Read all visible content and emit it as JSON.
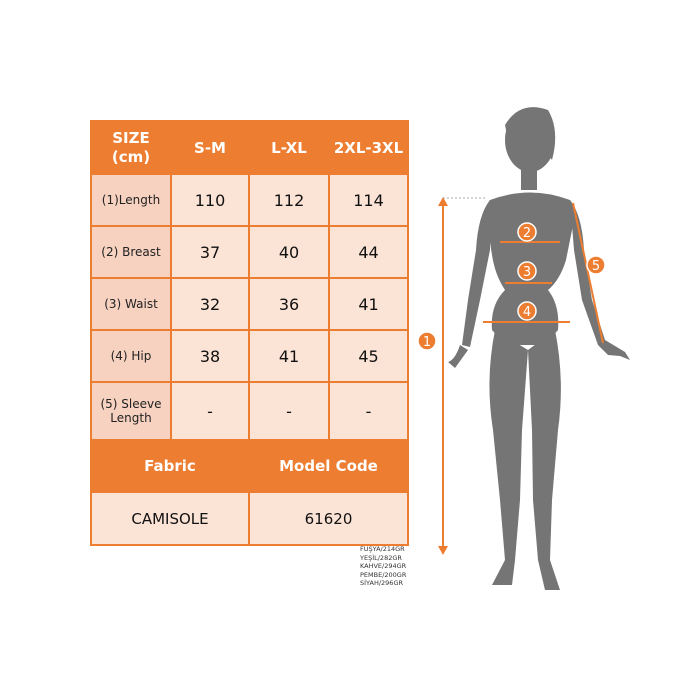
{
  "table": {
    "header": [
      "SIZE\n(cm)",
      "S-M",
      "L-XL",
      "2XL-3XL"
    ],
    "rows": [
      {
        "label": "(1)Length",
        "values": [
          "110",
          "112",
          "114"
        ]
      },
      {
        "label": "(2) Breast",
        "values": [
          "37",
          "40",
          "44"
        ]
      },
      {
        "label": "(3) Waist",
        "values": [
          "32",
          "36",
          "41"
        ]
      },
      {
        "label": "(4) Hip",
        "values": [
          "38",
          "41",
          "45"
        ]
      },
      {
        "label": "(5) Sleeve Length",
        "values": [
          "-",
          "-",
          "-"
        ]
      }
    ],
    "fabric_label": "Fabric",
    "model_code_label": "Model Code",
    "fabric": "CAMISOLE",
    "model_code": "61620"
  },
  "weights": [
    "FUŞYA/214GR",
    "YEŞİL/282GR",
    "KAHVE/294GR",
    "PEMBE/200GR",
    "SİYAH/296GR"
  ],
  "markers": [
    "1",
    "2",
    "3",
    "4",
    "5"
  ],
  "colors": {
    "accent": "#ed7d31",
    "label_cell": "#f7d2c0",
    "value_cell": "#fbe3d6",
    "silhouette": "#757575"
  }
}
